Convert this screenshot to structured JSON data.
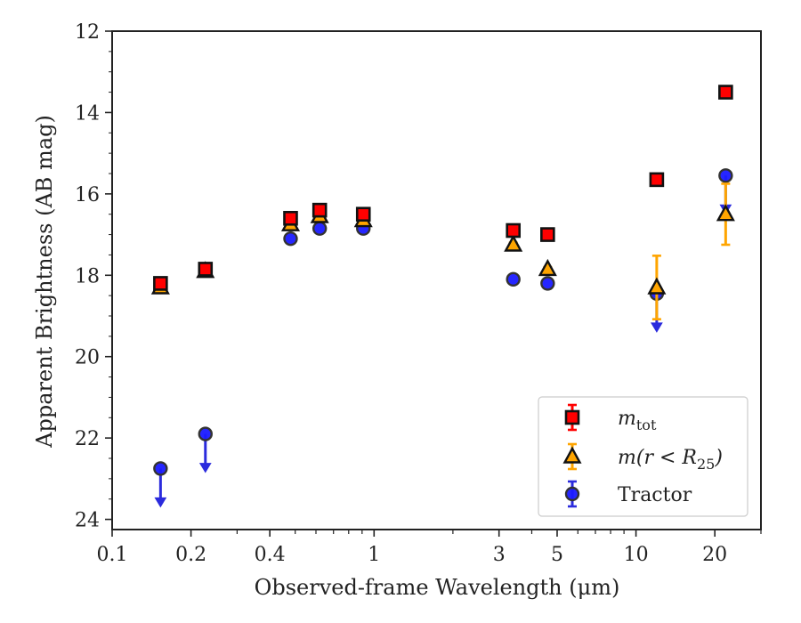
{
  "chart_data": {
    "type": "scatter",
    "title": "",
    "xlabel": "Observed-frame Wavelength (μm)",
    "ylabel": "Apparent Brightness (AB mag)",
    "xscale": "log",
    "xlim": [
      0.1,
      30
    ],
    "ylim": [
      24.25,
      12
    ],
    "y_inverted": true,
    "xticks": [
      {
        "value": 0.1,
        "label": "0.1"
      },
      {
        "value": 0.2,
        "label": "0.2"
      },
      {
        "value": 0.4,
        "label": "0.4"
      },
      {
        "value": 1,
        "label": "1"
      },
      {
        "value": 3,
        "label": "3"
      },
      {
        "value": 5,
        "label": "5"
      },
      {
        "value": 10,
        "label": "10"
      },
      {
        "value": 20,
        "label": "20"
      }
    ],
    "yticks": [
      {
        "value": 12,
        "label": "12"
      },
      {
        "value": 14,
        "label": "14"
      },
      {
        "value": 16,
        "label": "16"
      },
      {
        "value": 18,
        "label": "18"
      },
      {
        "value": 20,
        "label": "20"
      },
      {
        "value": 22,
        "label": "22"
      },
      {
        "value": 24,
        "label": "24"
      }
    ],
    "legend_position": "lower right",
    "series": [
      {
        "key": "tot",
        "name_main": "m",
        "name_sub": "tot",
        "marker": "square",
        "color": "#ff0000",
        "edge": "#111111",
        "errcolor": "#ff0000",
        "points": [
          {
            "x": 0.153,
            "y": 18.2,
            "err": 0.1
          },
          {
            "x": 0.227,
            "y": 17.85,
            "err": 0.08
          },
          {
            "x": 0.48,
            "y": 16.6,
            "err": 0.06
          },
          {
            "x": 0.62,
            "y": 16.4,
            "err": 0.05
          },
          {
            "x": 0.91,
            "y": 16.5,
            "err": 0.05
          },
          {
            "x": 3.4,
            "y": 16.9,
            "err": 0.05
          },
          {
            "x": 4.6,
            "y": 17.0,
            "err": 0.05
          },
          {
            "x": 12.0,
            "y": 15.65,
            "err": 0.05
          },
          {
            "x": 22.0,
            "y": 13.5,
            "err": 0.05
          }
        ]
      },
      {
        "key": "r25",
        "name_main": "m(r < R",
        "name_sub": "25",
        "name_end": ")",
        "marker": "triangle",
        "color": "#ffa500",
        "edge": "#111111",
        "errcolor": "#ffa500",
        "points": [
          {
            "x": 0.153,
            "y": 18.3,
            "err": 0.05
          },
          {
            "x": 0.227,
            "y": 17.9,
            "err": 0.05
          },
          {
            "x": 0.48,
            "y": 16.75,
            "err": 0.05
          },
          {
            "x": 0.62,
            "y": 16.55,
            "err": 0.05
          },
          {
            "x": 0.91,
            "y": 16.65,
            "err": 0.05
          },
          {
            "x": 3.4,
            "y": 17.25,
            "err": 0.05
          },
          {
            "x": 4.6,
            "y": 17.85,
            "err": 0.05
          },
          {
            "x": 12.0,
            "y": 18.3,
            "err": 0.78
          },
          {
            "x": 22.0,
            "y": 16.5,
            "err": 0.75
          }
        ]
      },
      {
        "key": "tractor",
        "name_main": "Tractor",
        "marker": "circle",
        "color": "#1a1aff",
        "edge": "#333333",
        "errcolor": "#2b2bdd",
        "points": [
          {
            "x": 0.153,
            "y": 22.75,
            "upper_limit": true
          },
          {
            "x": 0.227,
            "y": 21.9,
            "upper_limit": true
          },
          {
            "x": 0.48,
            "y": 17.1
          },
          {
            "x": 0.62,
            "y": 16.85
          },
          {
            "x": 0.91,
            "y": 16.85
          },
          {
            "x": 3.4,
            "y": 18.1
          },
          {
            "x": 4.6,
            "y": 18.2
          },
          {
            "x": 12.0,
            "y": 18.45,
            "upper_limit": true
          },
          {
            "x": 22.0,
            "y": 15.55,
            "upper_limit": true
          }
        ]
      }
    ]
  }
}
